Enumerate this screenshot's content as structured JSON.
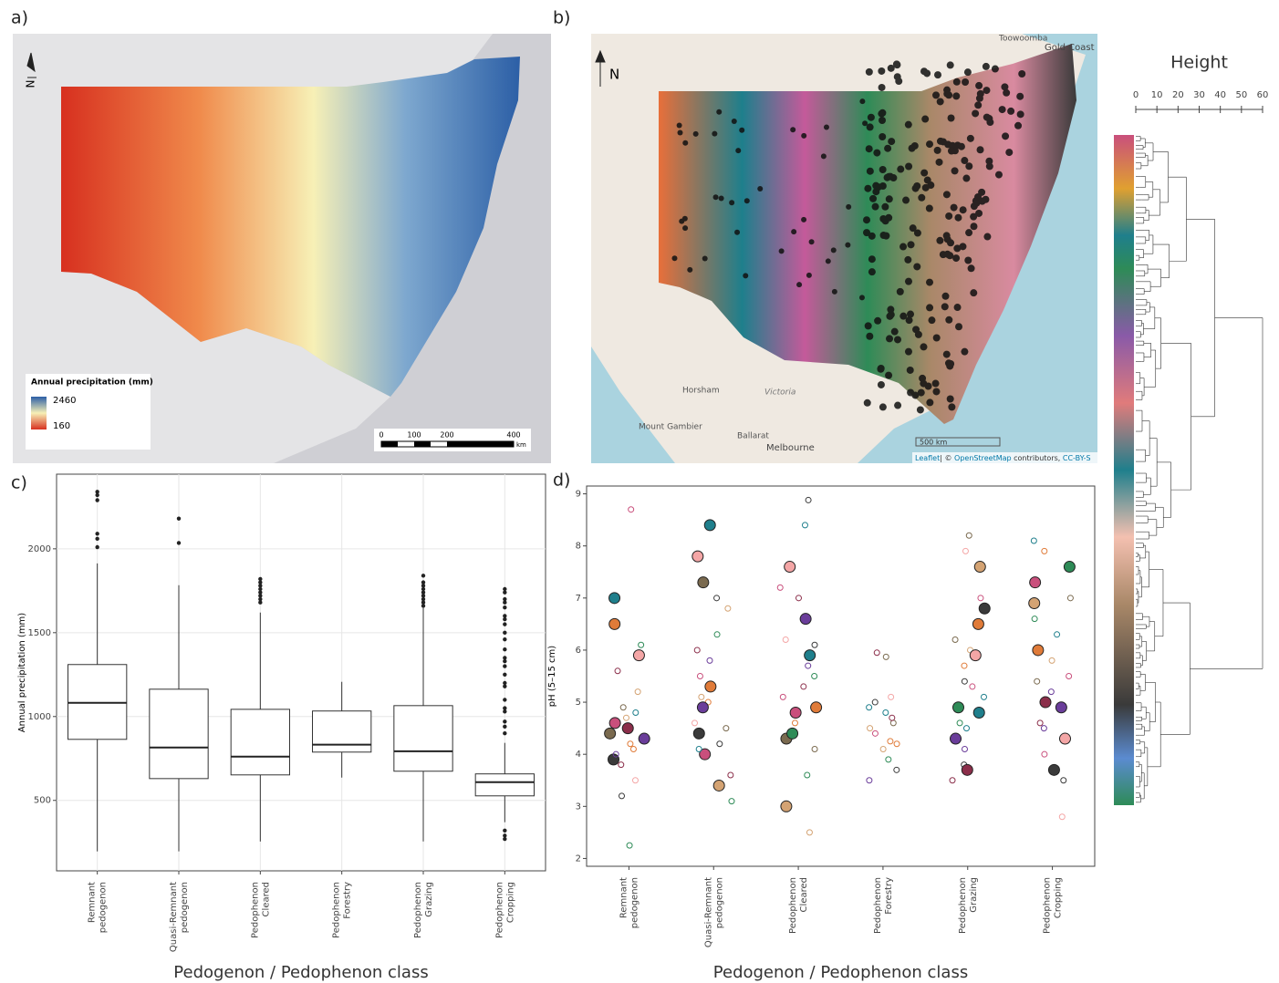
{
  "panel_labels": [
    "a)",
    "b)",
    "c)",
    "d)"
  ],
  "map_a": {
    "north": "N",
    "legend_title": "Annual precipitation (mm)",
    "legend_max": "2460",
    "legend_min": "160",
    "scale_ticks": [
      "0",
      "100",
      "200",
      "400"
    ],
    "scale_unit": "km"
  },
  "map_b": {
    "north": "N",
    "places": [
      "Toowoomba",
      "Gold Coast",
      "Horsham",
      "Victoria",
      "Mount Gambier",
      "Ballarat",
      "Melbourne"
    ],
    "scale": "500 km",
    "attribution_link1": "Leaflet",
    "attribution_text": "| © ",
    "attribution_link2": "OpenStreetMap",
    "attribution_text2": " contributors, ",
    "attribution_link3": "CC-BY-S"
  },
  "chart_data": [
    {
      "type": "box",
      "ylabel": "Annual precipitation (mm)",
      "xlabel": "Pedogenon / Pedophenon class",
      "categories": [
        [
          "Remnant",
          "pedogenon"
        ],
        [
          "Quasi-Remnant",
          "pedogenon"
        ],
        [
          "Pedophenon",
          "Cleared"
        ],
        [
          "Pedophenon",
          "Forestry"
        ],
        [
          "Pedophenon",
          "Grazing"
        ],
        [
          "Pedophenon",
          "Cropping"
        ]
      ],
      "boxes": [
        {
          "whisker_low": 196,
          "q1": 864,
          "median": 1082,
          "q3": 1310,
          "whisker_high": 1913,
          "outliers": [
            2340,
            2320,
            2290,
            2090,
            2060,
            2010
          ]
        },
        {
          "whisker_low": 196,
          "q1": 630,
          "median": 815,
          "q3": 1163,
          "whisker_high": 1783,
          "outliers": [
            2180,
            2035
          ]
        },
        {
          "whisker_low": 255,
          "q1": 652,
          "median": 761,
          "q3": 1043,
          "whisker_high": 1620,
          "outliers": [
            1820,
            1800,
            1780,
            1760,
            1740,
            1720,
            1700,
            1680
          ]
        },
        {
          "whisker_low": 636,
          "q1": 788,
          "median": 832,
          "q3": 1033,
          "whisker_high": 1207,
          "outliers": []
        },
        {
          "whisker_low": 255,
          "q1": 674,
          "median": 793,
          "q3": 1065,
          "whisker_high": 1647,
          "outliers": [
            1840,
            1800,
            1780,
            1760,
            1740,
            1720,
            1700,
            1680,
            1660
          ]
        },
        {
          "whisker_low": 370,
          "q1": 527,
          "median": 609,
          "q3": 658,
          "whisker_high": 843,
          "outliers": [
            1760,
            1740,
            1700,
            1680,
            1650,
            1600,
            1580,
            1550,
            1500,
            1460,
            1400,
            1350,
            1330,
            1300,
            1250,
            1200,
            1180,
            1100,
            1050,
            1030,
            970,
            940,
            900,
            320,
            290,
            270
          ]
        }
      ],
      "ylim": [
        80,
        2445
      ],
      "yticks": [
        500,
        1000,
        1500,
        2000
      ],
      "grid": true
    },
    {
      "type": "scatter",
      "ylabel": "pH (5–15 cm)",
      "xlabel": "Pedogenon / Pedophenon class",
      "categories": [
        [
          "Remnant",
          "pedogenon"
        ],
        [
          "Quasi-Remnant",
          "pedogenon"
        ],
        [
          "Pedophenon",
          "Cleared"
        ],
        [
          "Pedophenon",
          "Forestry"
        ],
        [
          "Pedophenon",
          "Grazing"
        ],
        [
          "Pedophenon",
          "Cropping"
        ]
      ],
      "series": [
        {
          "values": [
            4.5,
            4.2,
            4.8,
            3.9,
            5.2,
            4.0,
            4.6,
            6.1,
            3.5,
            4.4,
            5.6,
            4.1,
            7.0,
            3.2,
            4.7,
            4.3,
            8.7,
            2.25,
            5.9,
            4.9,
            3.8,
            6.5
          ]
        },
        {
          "values": [
            4.4,
            5.1,
            5.8,
            4.0,
            6.3,
            4.6,
            7.3,
            3.6,
            5.0,
            8.4,
            4.2,
            6.8,
            4.9,
            5.5,
            3.1,
            7.8,
            4.5,
            6.0,
            5.3,
            4.1,
            7.0,
            3.4
          ]
        },
        {
          "values": [
            4.8,
            5.5,
            6.2,
            4.3,
            7.0,
            4.6,
            5.9,
            8.88,
            2.5,
            6.6,
            5.1,
            3.6,
            7.6,
            4.1,
            5.3,
            4.9,
            8.4,
            6.1,
            3.0,
            5.7,
            7.2,
            4.4
          ]
        },
        {
          "values": [
            5.87,
            5.95,
            4.2,
            4.8,
            5.0,
            4.5,
            3.5,
            4.4,
            3.9,
            5.1,
            4.6,
            4.7,
            4.25,
            4.9,
            3.7,
            4.1
          ]
        },
        {
          "values": [
            4.8,
            5.4,
            6.0,
            4.3,
            7.0,
            4.6,
            5.9,
            8.2,
            3.5,
            6.5,
            5.1,
            3.8,
            7.6,
            4.1,
            5.3,
            4.9,
            7.9,
            6.2,
            3.7,
            5.7,
            4.5,
            6.8
          ]
        },
        {
          "values": [
            4.9,
            5.5,
            6.6,
            4.3,
            7.0,
            4.6,
            6.0,
            8.1,
            3.5,
            6.9,
            5.2,
            4.0,
            7.6,
            2.8,
            5.4,
            5.0,
            7.9,
            6.3,
            3.7,
            5.8,
            4.5,
            7.3
          ]
        }
      ],
      "palette": [
        "#8b2e4a",
        "#e07b39",
        "#1f7f8c",
        "#3a3a3a",
        "#d4a373",
        "#6a3d9a",
        "#c94f7c",
        "#2e8b57",
        "#f4a6a6",
        "#7a6a4f"
      ],
      "ylim": [
        1.85,
        9.15
      ],
      "yticks": [
        2,
        3,
        4,
        5,
        6,
        7,
        8,
        9
      ]
    },
    {
      "type": "dendrogram",
      "title": "Height",
      "xlim": [
        0,
        60
      ],
      "xticks": [
        0,
        10,
        20,
        30,
        40,
        50,
        60
      ]
    }
  ]
}
